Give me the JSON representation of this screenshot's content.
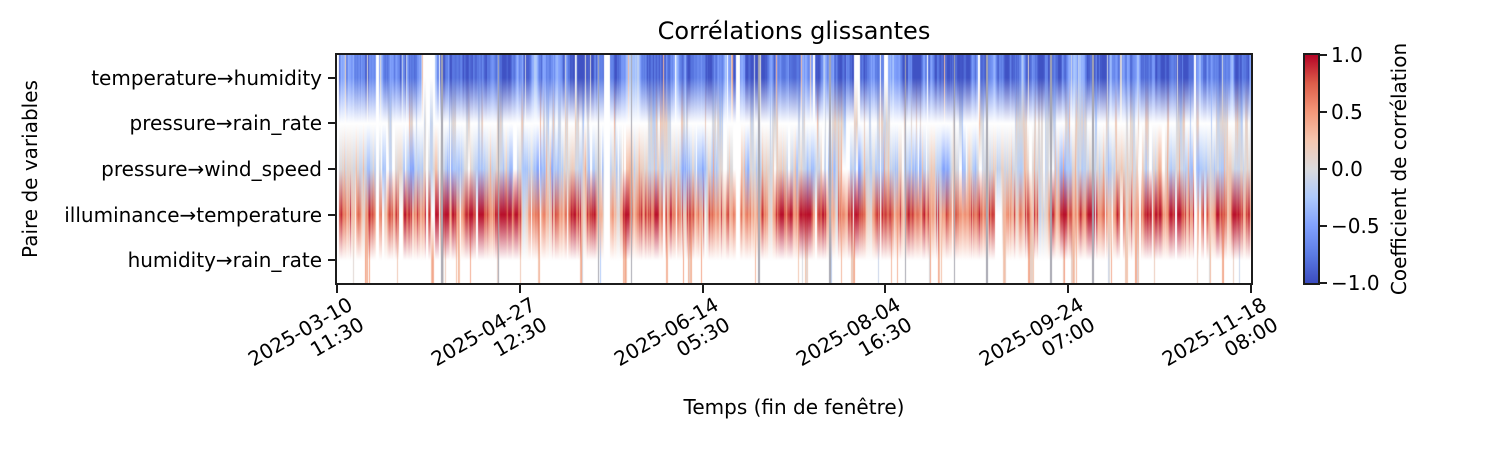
{
  "title": "Corrélations glissantes",
  "axes": {
    "x_label": "Temps (fin de fenêtre)",
    "y_label": "Paire de variables",
    "y_tick_labels": [
      "temperature→humidity",
      "pressure→rain_rate",
      "pressure→wind_speed",
      "illuminance→temperature",
      "humidity→rain_rate"
    ],
    "x_ticks": [
      {
        "date": "2025-03-10",
        "time": "11:30",
        "frac": 0.0
      },
      {
        "date": "2025-04-27",
        "time": "12:30",
        "frac": 0.2
      },
      {
        "date": "2025-06-14",
        "time": "05:30",
        "frac": 0.4
      },
      {
        "date": "2025-08-04",
        "time": "16:30",
        "frac": 0.6
      },
      {
        "date": "2025-09-24",
        "time": "07:00",
        "frac": 0.8
      },
      {
        "date": "2025-11-18",
        "time": "08:00",
        "frac": 1.0
      }
    ]
  },
  "colorbar": {
    "label": "Coefficient de corrélation",
    "ticks": [
      {
        "label": "1.0",
        "value": 1.0
      },
      {
        "label": "0.5",
        "value": 0.5
      },
      {
        "label": "0.0",
        "value": 0.0
      },
      {
        "label": "−0.5",
        "value": -0.5
      },
      {
        "label": "−1.0",
        "value": -1.0
      }
    ],
    "vmin": -1.0,
    "vmax": 1.0
  },
  "chart_data": {
    "type": "heatmap",
    "title": "Corrélations glissantes",
    "xlabel": "Temps (fin de fenêtre)",
    "ylabel": "Paire de variables",
    "rows": [
      "temperature→humidity",
      "pressure→rain_rate",
      "pressure→wind_speed",
      "illuminance→temperature",
      "humidity→rain_rate"
    ],
    "x_range": [
      "2025-03-10 11:30",
      "2025-11-18 08:00"
    ],
    "value_range": [
      -1.0,
      1.0
    ],
    "colormap": {
      "name": "coolwarm",
      "nan_color": "#ffffff",
      "event_gray": "#a6a6b0",
      "anchors": [
        {
          "v": -1.0,
          "c": [
            59,
            76,
            192
          ]
        },
        {
          "v": -0.75,
          "c": [
            92,
            124,
            228
          ]
        },
        {
          "v": -0.5,
          "c": [
            129,
            161,
            253
          ]
        },
        {
          "v": -0.25,
          "c": [
            174,
            202,
            252
          ]
        },
        {
          "v": 0.0,
          "c": [
            219,
            219,
            221
          ]
        },
        {
          "v": 0.25,
          "c": [
            244,
            198,
            175
          ]
        },
        {
          "v": 0.5,
          "c": [
            243,
            152,
            122
          ]
        },
        {
          "v": 0.75,
          "c": [
            220,
            94,
            74
          ]
        },
        {
          "v": 1.0,
          "c": [
            180,
            4,
            38
          ]
        }
      ]
    },
    "row_profiles": [
      {
        "pair": "temperature→humidity",
        "base": -0.72,
        "ar": 0.8,
        "sigma": 0.13,
        "nan_rate": 0.03,
        "nan_persist": 0.5,
        "spike_rate": 0.035,
        "spike_min": -0.15,
        "spike_max": 0.45,
        "clamp_min": -0.97,
        "clamp_max": 0.5
      },
      {
        "pair": "pressure→rain_rate",
        "base": 0.0,
        "ar": 0.5,
        "sigma": 0.09,
        "nan_rate": 0.66,
        "nan_persist": 0.88,
        "spike_rate": 0.03,
        "spike_min": 0.15,
        "spike_max": 0.4,
        "clamp_min": -0.3,
        "clamp_max": 0.45
      },
      {
        "pair": "pressure→wind_speed",
        "base": -0.07,
        "ar": 0.75,
        "sigma": 0.11,
        "nan_rate": 0.1,
        "nan_persist": 0.6,
        "spike_rate": 0.05,
        "spike_min": 0.2,
        "spike_max": 0.45,
        "clamp_min": -0.5,
        "clamp_max": 0.5
      },
      {
        "pair": "illuminance→temperature",
        "base": 0.6,
        "ar": 0.78,
        "sigma": 0.16,
        "nan_rate": 0.06,
        "nan_persist": 0.5,
        "spike_rate": 0.06,
        "spike_min": 0.85,
        "spike_max": 0.97,
        "clamp_min": -0.3,
        "clamp_max": 0.97
      },
      {
        "pair": "humidity→rain_rate",
        "base": 0.12,
        "ar": 0.4,
        "sigma": 0.14,
        "nan_rate": 0.88,
        "nan_persist": 0.93,
        "spike_rate": 0.25,
        "spike_min": 0.2,
        "spike_max": 0.45,
        "clamp_min": -0.3,
        "clamp_max": 0.5
      }
    ],
    "render": {
      "n_columns": 914,
      "col_width": 1,
      "seed": 1337,
      "row_center_fracs": [
        0.1,
        0.3,
        0.5,
        0.7,
        0.9
      ],
      "white_event_rate": 0.006,
      "gray_event_rate": 0.01,
      "leading_nan_columns": 2
    }
  },
  "layout_colors": {
    "spine": "#1c1c1c",
    "text": "#000000",
    "background": "#ffffff"
  }
}
